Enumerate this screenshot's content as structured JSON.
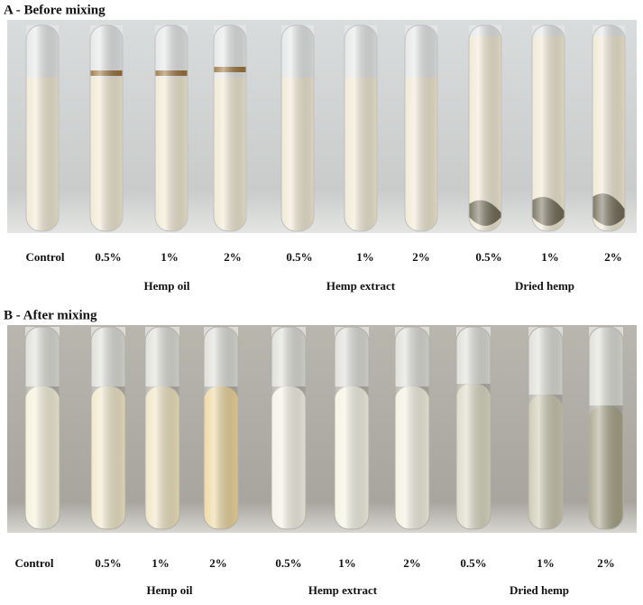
{
  "panels": [
    {
      "title": "A - Before mixing",
      "tube_labels": [
        "Control",
        "0.5%",
        "1%",
        "2%",
        "0.5%",
        "1%",
        "2%",
        "0.5%",
        "1%",
        "2%"
      ],
      "groups": [
        "Hemp oil",
        "Hemp extract",
        "Dried hemp"
      ]
    },
    {
      "title": "B - After mixing",
      "tube_labels": [
        "Control",
        "0.5%",
        "1%",
        "2%",
        "0.5%",
        "1%",
        "2%",
        "0.5%",
        "1%",
        "2%"
      ],
      "groups": [
        "Hemp oil",
        "Hemp extract",
        "Dried hemp"
      ]
    }
  ]
}
